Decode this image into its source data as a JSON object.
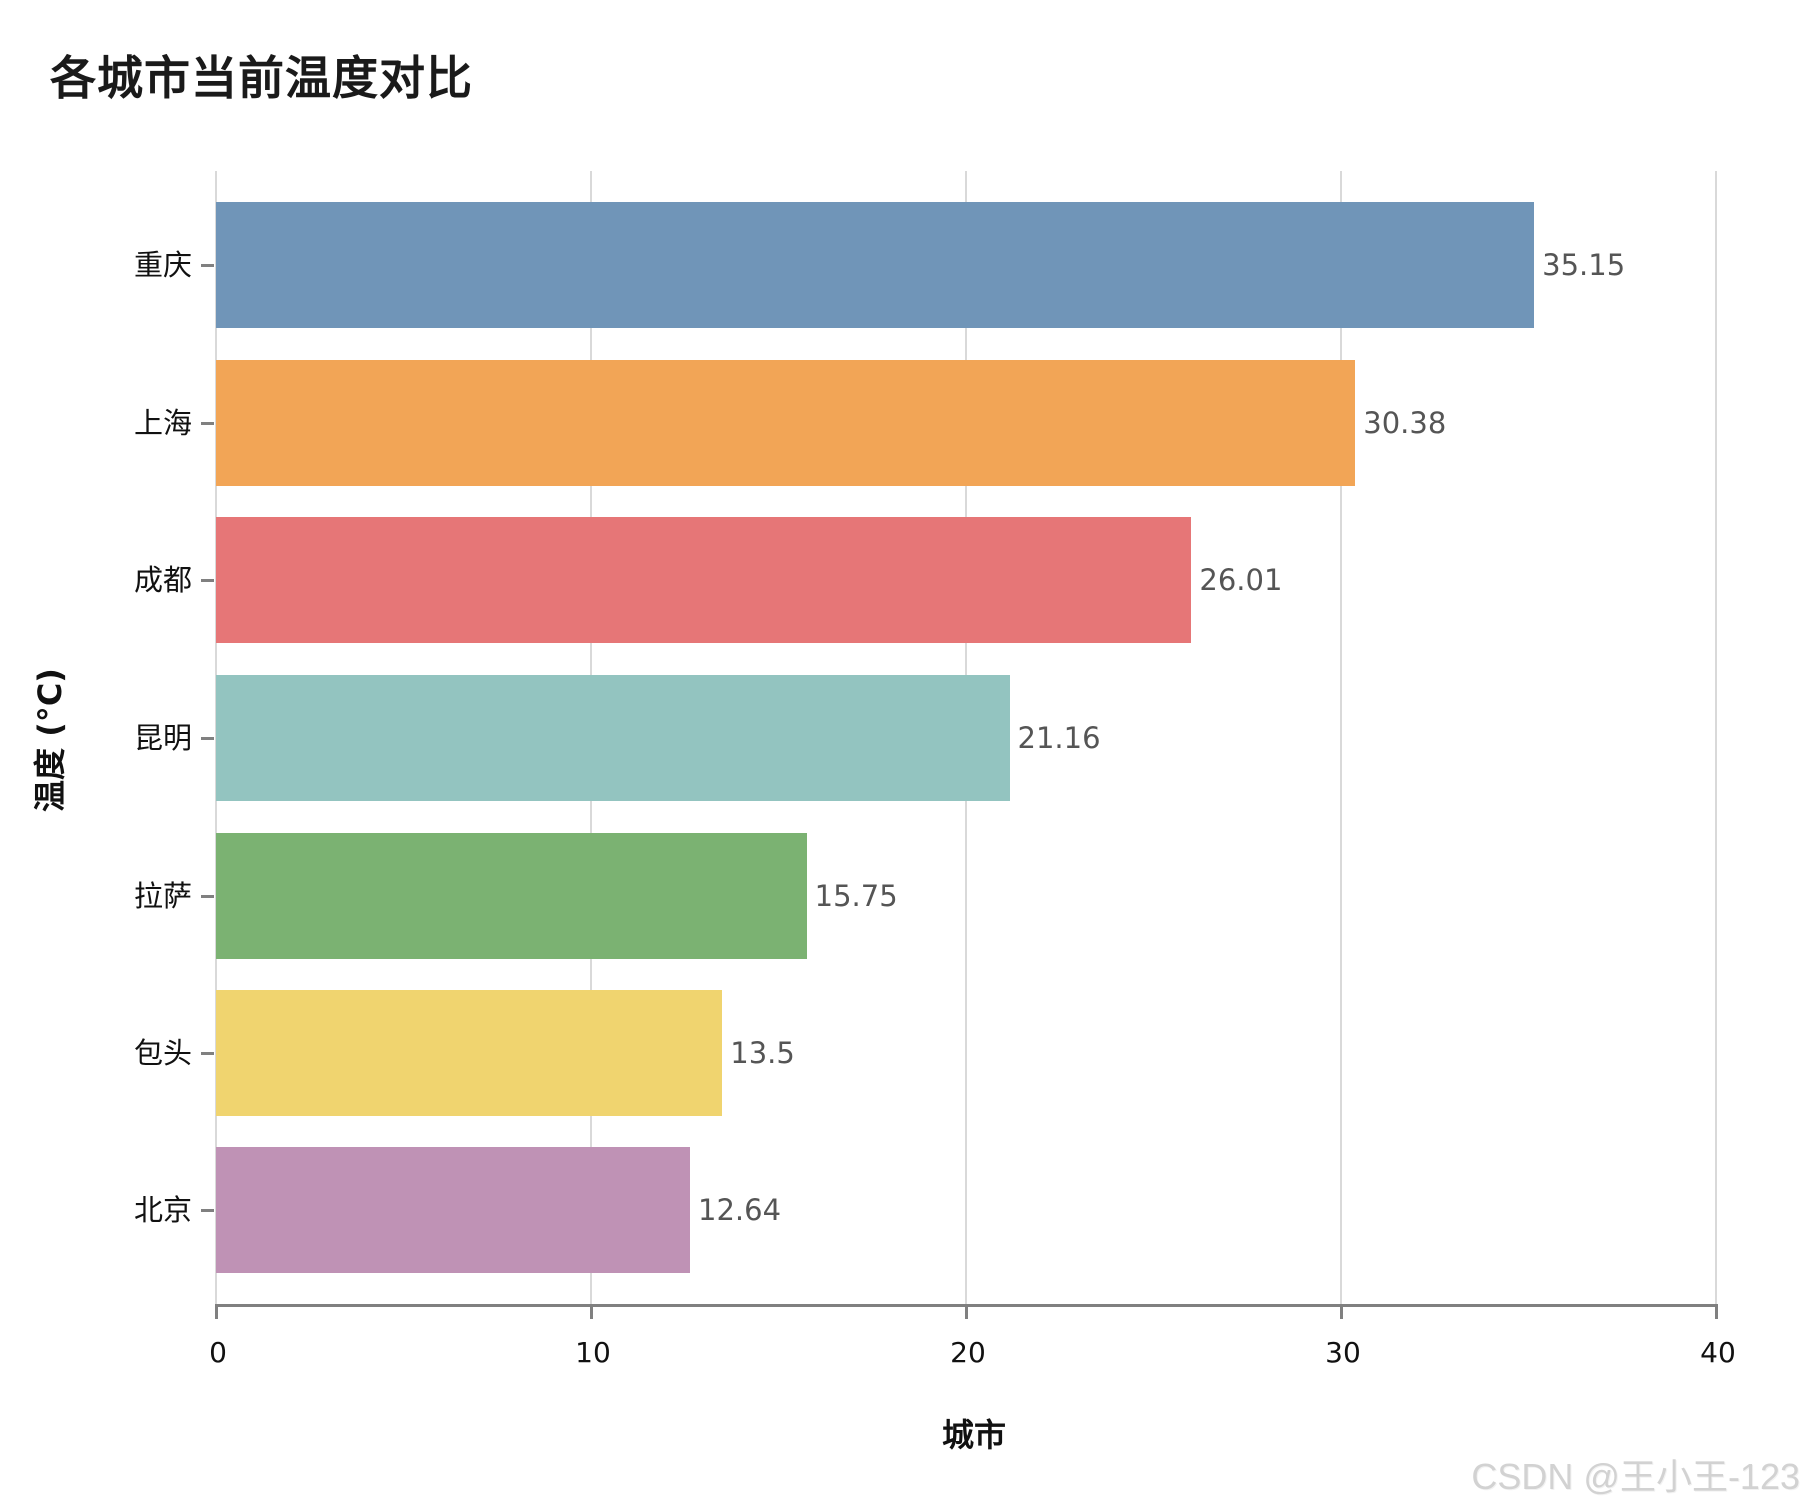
{
  "chart_data": {
    "type": "bar",
    "orientation": "horizontal",
    "title": "各城市当前温度对比",
    "xlabel": "城市",
    "ylabel": "温度 (°C)",
    "xlim": [
      0,
      40
    ],
    "xticks": [
      0,
      10,
      20,
      30,
      40
    ],
    "grid": "vertical",
    "legend": null,
    "categories": [
      "重庆",
      "上海",
      "成都",
      "昆明",
      "拉萨",
      "包头",
      "北京"
    ],
    "values": [
      35.15,
      30.38,
      26.01,
      21.16,
      15.75,
      13.5,
      12.64
    ],
    "value_labels": [
      "35.15",
      "30.38",
      "26.01",
      "21.16",
      "15.75",
      "13.5",
      "12.64"
    ],
    "colors": [
      "#7095b8",
      "#f2a556",
      "#e67677",
      "#93c4c0",
      "#7bb272",
      "#f0d46f",
      "#bf92b5"
    ]
  },
  "axis": {
    "tick_labels": [
      "0",
      "10",
      "20",
      "30",
      "40"
    ]
  },
  "watermark": "CSDN @王小王-123"
}
